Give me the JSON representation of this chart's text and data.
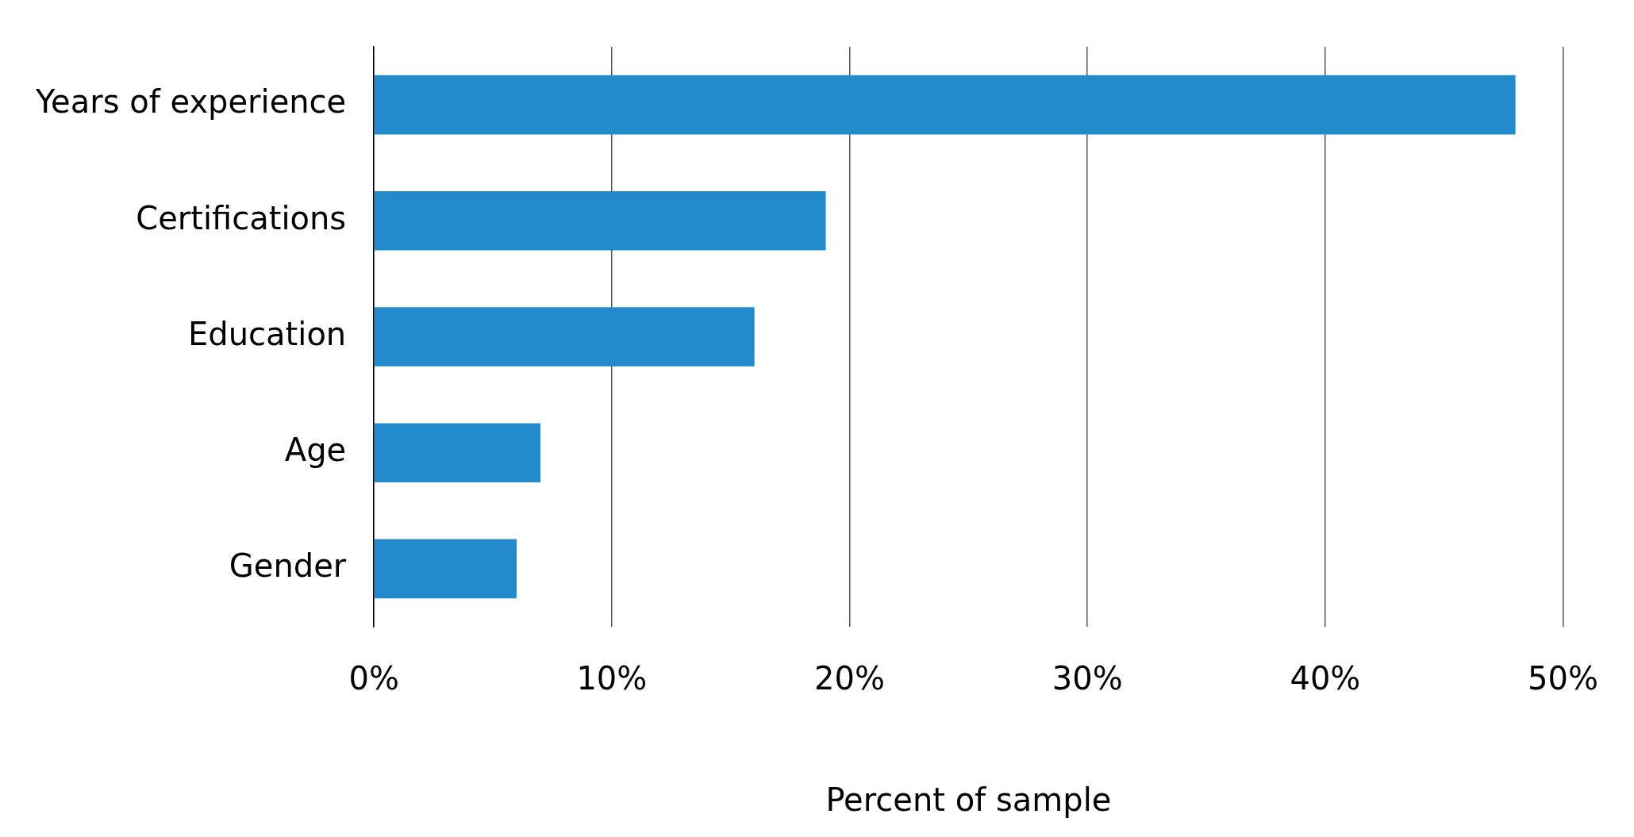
{
  "chart_data": {
    "type": "bar",
    "orientation": "horizontal",
    "xlabel": "Percent of sample",
    "categories": [
      "Years of experience",
      "Certifications",
      "Education",
      "Age",
      "Gender"
    ],
    "values": [
      48,
      19,
      16,
      7,
      6
    ],
    "color": "#228aca",
    "xlim": [
      0,
      50
    ],
    "xticks": [
      {
        "value": 0,
        "label": "0%"
      },
      {
        "value": 10,
        "label": "10%"
      },
      {
        "value": 20,
        "label": "20%"
      },
      {
        "value": 30,
        "label": "30%"
      },
      {
        "value": 40,
        "label": "40%"
      },
      {
        "value": 50,
        "label": "50%"
      }
    ],
    "grid": "x"
  }
}
